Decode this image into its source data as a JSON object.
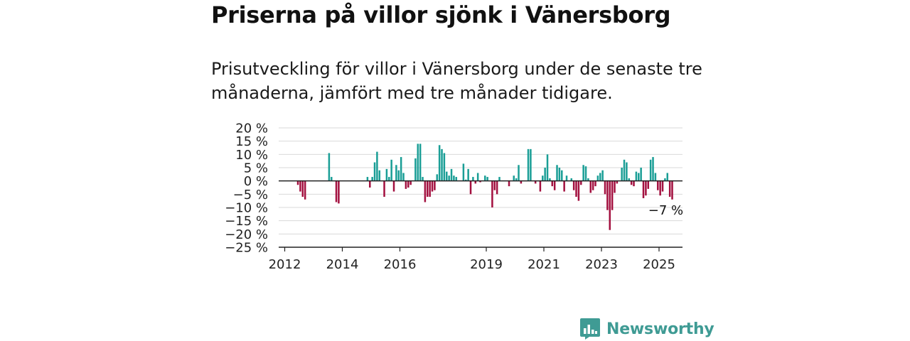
{
  "header": {
    "title": "Priserna på villor sjönk i Vänersborg",
    "subtitle": "Prisutveckling för villor i Vänersborg under de senaste tre månaderna, jämfört med tre månader tidigare."
  },
  "brand": {
    "name": "Newsworthy",
    "logo_icon": "bar-chart-speech-bubble-icon",
    "color": "#3f9b94"
  },
  "colors": {
    "positive": "#1a9e96",
    "negative": "#a3103f",
    "grid": "#d9d9d9",
    "zero_line": "#222222"
  },
  "chart_data": {
    "type": "bar",
    "x_unit": "month",
    "x_start": "2012-01",
    "ylim": [
      -25,
      20
    ],
    "yticks": [
      20,
      15,
      10,
      5,
      0,
      -5,
      -10,
      -15,
      -20,
      -25
    ],
    "ytick_labels": [
      "20 %",
      "15 %",
      "10 %",
      "5 %",
      "0 %",
      "−5 %",
      "−10 %",
      "−15 %",
      "−20 %",
      "−25 %"
    ],
    "xticks": [
      {
        "date": "2012-01",
        "label": "2012"
      },
      {
        "date": "2014-01",
        "label": "2014"
      },
      {
        "date": "2016-01",
        "label": "2016"
      },
      {
        "date": "2019-01",
        "label": "2019"
      },
      {
        "date": "2021-01",
        "label": "2021"
      },
      {
        "date": "2023-01",
        "label": "2023"
      },
      {
        "date": "2025-01",
        "label": "2025"
      }
    ],
    "grid": true,
    "annotation": {
      "date": "2025-04",
      "text": "−7 %"
    },
    "series": [
      {
        "values": [
          null,
          null,
          null,
          null,
          null,
          -1.5,
          -4,
          -6,
          -7,
          null,
          null,
          null,
          null,
          null,
          null,
          null,
          null,
          null,
          10.5,
          1.5,
          0,
          -8,
          -8.5,
          null,
          null,
          null,
          null,
          null,
          null,
          null,
          null,
          null,
          null,
          null,
          1.5,
          -2.5,
          1.5,
          7,
          11,
          4,
          0,
          -6,
          4.5,
          1.5,
          8,
          -4,
          6,
          4,
          9,
          3,
          -3,
          -2.5,
          -1.5,
          null,
          8.5,
          14,
          14,
          1.5,
          -8,
          -6,
          -6,
          -4,
          -3.5,
          2.5,
          13.5,
          12,
          10.5,
          3.5,
          2,
          4.5,
          2,
          1.5,
          null,
          null,
          6.5,
          0.5,
          4.5,
          -5,
          1.5,
          -1,
          3,
          -0.5,
          null,
          2,
          1.5,
          null,
          -10,
          -3.5,
          -5,
          1.5,
          null,
          null,
          null,
          -2,
          null,
          2,
          1,
          6,
          -1,
          null,
          null,
          12,
          12,
          null,
          -1,
          null,
          -4,
          2,
          5,
          10,
          1,
          -2,
          -3.5,
          6,
          5,
          4,
          -4,
          2,
          null,
          1,
          -3.5,
          -6,
          -7.5,
          -1.5,
          6,
          5.5,
          1,
          -4.5,
          -3.5,
          -2,
          2,
          3,
          4,
          -5,
          -11,
          -18.5,
          -11,
          -4.5,
          -1,
          null,
          5,
          8,
          7,
          1,
          -1.5,
          -2,
          3.5,
          3,
          5,
          -6.5,
          -5.5,
          -3,
          8,
          9,
          3,
          -3.5,
          -5.5,
          -4,
          1,
          3,
          -6,
          -7
        ]
      }
    ]
  }
}
